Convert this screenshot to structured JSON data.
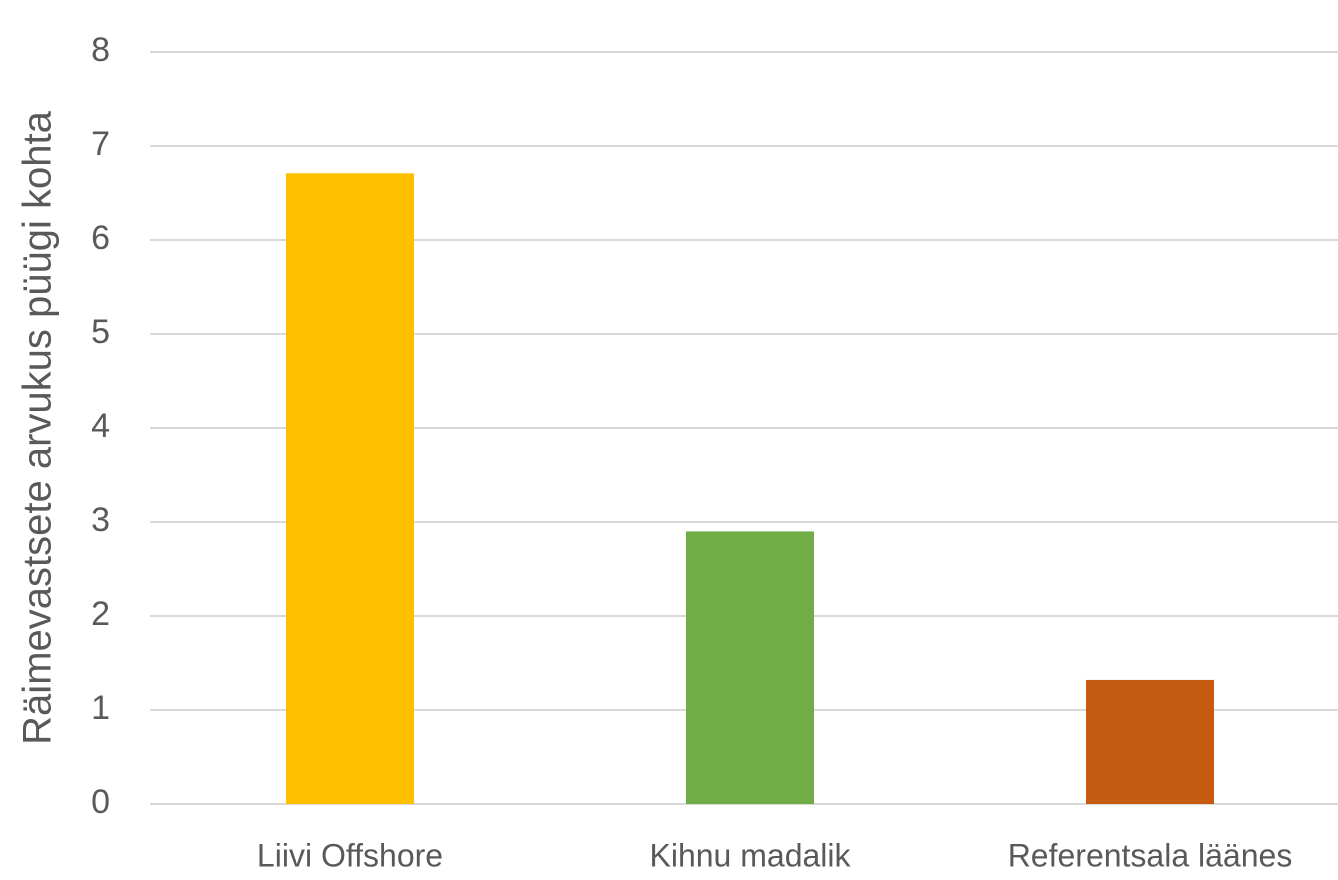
{
  "chart_data": {
    "type": "bar",
    "y_label": "Räimevastsete arvukus püügi kohta",
    "categories": [
      "Liivi Offshore",
      "Kihnu madalik",
      "Referentsala läänes"
    ],
    "values": [
      6.71,
      2.9,
      1.32
    ],
    "colors": [
      "#ffc000",
      "#70ad47",
      "#c55a11"
    ],
    "ylim": [
      0,
      8
    ],
    "yticks": [
      0,
      1,
      2,
      3,
      4,
      5,
      6,
      7,
      8
    ],
    "grid": true
  }
}
